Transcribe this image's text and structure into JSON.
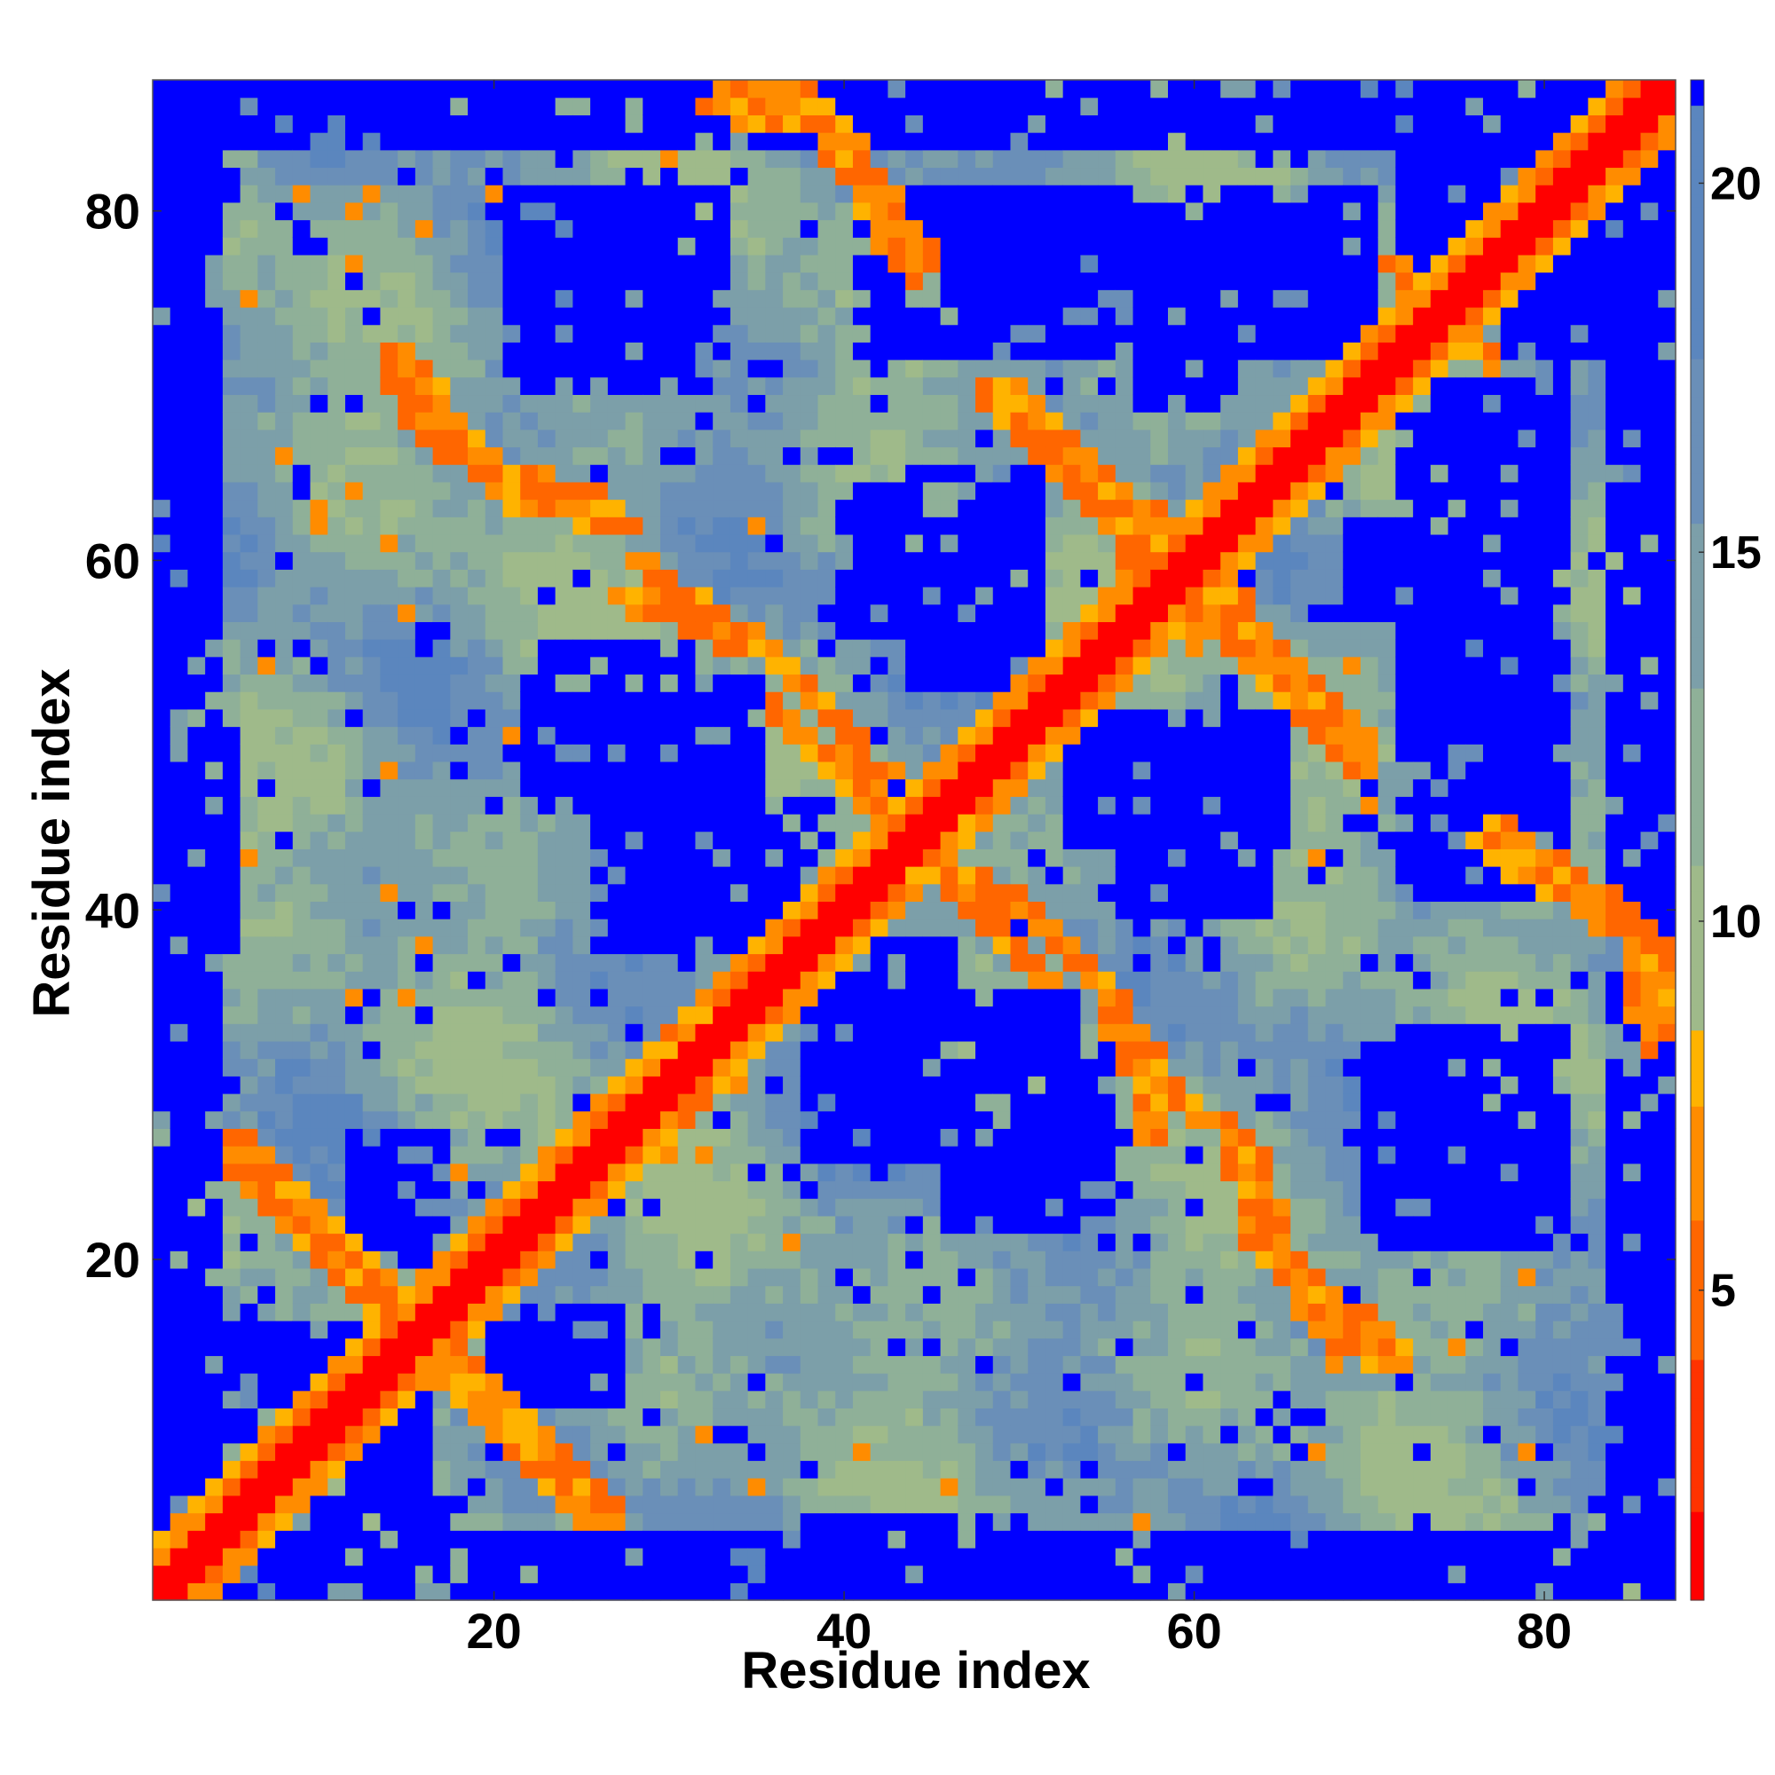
{
  "chart_data": {
    "type": "heatmap",
    "title": "",
    "xlabel": "Residue index",
    "ylabel": "Residue index",
    "n_residues": 87,
    "xlim": [
      0.5,
      87.5
    ],
    "ylim": [
      0.5,
      87.5
    ],
    "x_ticks": [
      20,
      40,
      60,
      80
    ],
    "y_ticks": [
      20,
      40,
      60,
      80
    ],
    "colorbar": {
      "ticks": [
        5,
        10,
        15,
        20
      ],
      "range": [
        0.8,
        21.4
      ],
      "position": "right",
      "cutoff_saturation": 21,
      "discrete_colors": [
        {
          "max": 2,
          "color": "#ff0000"
        },
        {
          "max": 4,
          "color": "#ff3300"
        },
        {
          "max": 6,
          "color": "#ff6600"
        },
        {
          "max": 7.5,
          "color": "#ff8c00"
        },
        {
          "max": 8.5,
          "color": "#ffb300"
        }
      ],
      "gradient_colors": [
        "#9fba8a",
        "#8fb098",
        "#7c9fa9",
        "#6a8fb8",
        "#5b86be"
      ],
      "saturation_color": "#0000ff"
    },
    "contact_lines": [
      {
        "from": [
          1,
          1
        ],
        "to": [
          87,
          87
        ],
        "value": 0.8,
        "width": 1.2,
        "note": "diagonal"
      },
      {
        "from": [
          5,
          27
        ],
        "to": [
          12,
          20
        ],
        "value": 6
      },
      {
        "from": [
          12,
          20
        ],
        "to": [
          17,
          15
        ],
        "value": 6
      },
      {
        "from": [
          17,
          14
        ],
        "to": [
          26,
          5
        ],
        "value": 6
      },
      {
        "from": [
          28,
          31
        ],
        "to": [
          40,
          39
        ],
        "value": 6
      },
      {
        "from": [
          40,
          40
        ],
        "to": [
          47,
          45
        ],
        "value": 6
      },
      {
        "from": [
          45,
          42
        ],
        "to": [
          52,
          36
        ],
        "value": 6
      },
      {
        "from": [
          55,
          35
        ],
        "to": [
          58,
          27
        ],
        "value": 6
      },
      {
        "from": [
          62,
          28
        ],
        "to": [
          64,
          20
        ],
        "value": 6
      },
      {
        "from": [
          64,
          20
        ],
        "to": [
          72,
          15
        ],
        "value": 6
      },
      {
        "from": [
          45,
          43
        ],
        "to": [
          48,
          39
        ],
        "value": 6
      },
      {
        "from": [
          76,
          44
        ],
        "to": [
          86,
          38
        ],
        "value": 6
      },
      {
        "from": [
          86,
          38
        ],
        "to": [
          88,
          32
        ],
        "value": 6
      },
      {
        "from": [
          60,
          57
        ],
        "to": [
          70,
          48
        ],
        "value": 6
      },
      {
        "from": [
          40,
          51
        ],
        "to": [
          34,
          56
        ],
        "value": 6
      },
      {
        "from": [
          34,
          56
        ],
        "to": [
          28,
          60
        ],
        "value": 6
      },
      {
        "from": [
          27,
          63
        ],
        "to": [
          16,
          67
        ],
        "value": 6
      },
      {
        "from": [
          16,
          67
        ],
        "to": [
          14,
          72
        ],
        "value": 6
      },
      {
        "from": [
          58,
          62
        ],
        "to": [
          49,
          70
        ],
        "value": 6
      },
      {
        "from": [
          38,
          87
        ],
        "to": [
          45,
          77
        ],
        "value": 6
      },
      {
        "from": [
          32,
          86
        ],
        "to": [
          38,
          85
        ],
        "value": 6
      },
      {
        "from": [
          71,
          77
        ],
        "to": [
          77,
          72
        ],
        "value": 6
      },
      {
        "from": [
          42,
          46
        ],
        "to": [
          40,
          51
        ],
        "value": 6
      }
    ],
    "empty_regions": [
      {
        "x": [
          1,
          4
        ],
        "y": [
          1,
          90
        ]
      },
      {
        "x": [
          84,
          88
        ],
        "y": [
          1,
          90
        ]
      },
      {
        "x": [
          1,
          90
        ],
        "y": [
          1,
          4
        ]
      },
      {
        "x": [
          21,
          33
        ],
        "y": [
          72,
          81
        ]
      },
      {
        "x": [
          41,
          56
        ],
        "y": [
          72,
          81
        ]
      },
      {
        "x": [
          60,
          70
        ],
        "y": [
          72,
          81
        ]
      },
      {
        "x": [
          73,
          83
        ],
        "y": [
          72,
          81
        ]
      },
      {
        "x": [
          40,
          48
        ],
        "y": [
          56,
          64
        ]
      },
      {
        "x": [
          69,
          80
        ],
        "y": [
          57,
          62
        ]
      },
      {
        "x": [
          22,
          35
        ],
        "y": [
          46,
          53
        ]
      },
      {
        "x": [
          53,
          65
        ],
        "y": [
          44,
          51
        ]
      },
      {
        "x": [
          38,
          46
        ],
        "y": [
          26,
          38
        ]
      },
      {
        "x": [
          70,
          80
        ],
        "y": [
          22,
          32
        ]
      },
      {
        "x": [
          12,
          17
        ],
        "y": [
          22,
          27
        ]
      },
      {
        "x": [
          48,
          55
        ],
        "y": [
          23,
          31
        ]
      },
      {
        "x": [
          20,
          25
        ],
        "y": [
          12,
          16
        ]
      },
      {
        "x": [
          4,
          12
        ],
        "y": [
          12,
          16
        ]
      },
      {
        "x": [
          10,
          17
        ],
        "y": [
          1,
          6
        ]
      },
      {
        "x": [
          38,
          50
        ],
        "y": [
          1,
          5
        ]
      }
    ]
  }
}
